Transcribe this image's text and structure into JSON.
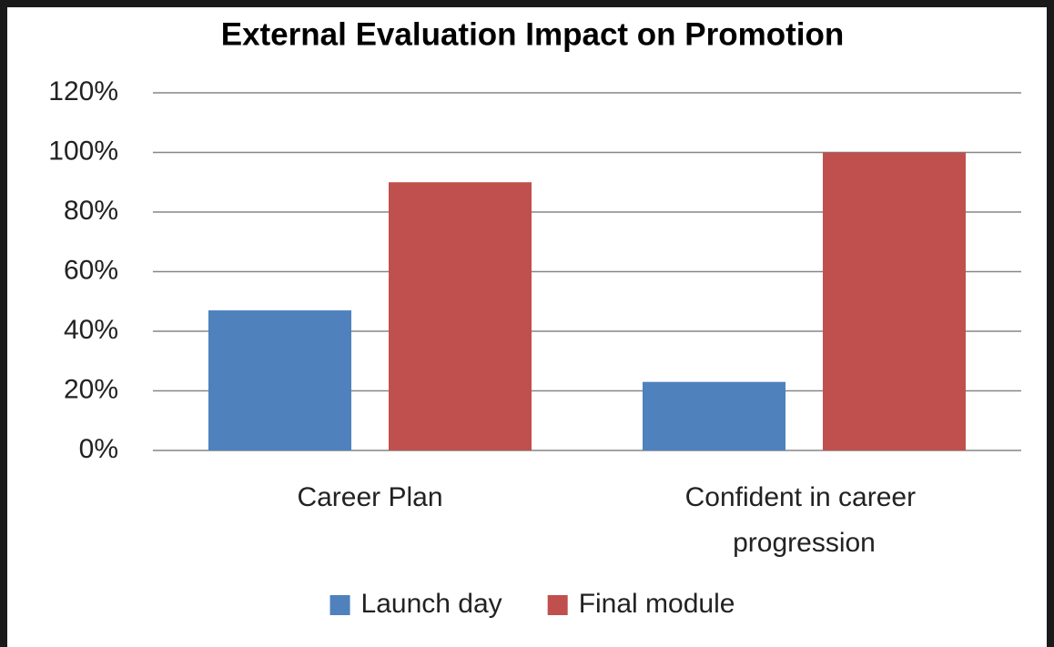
{
  "chart_data": {
    "type": "bar",
    "title": "External Evaluation Impact on Promotion",
    "categories": [
      "Career Plan",
      "Confident in career progression"
    ],
    "series": [
      {
        "name": "Launch day",
        "color": "#4f81bd",
        "values": [
          47,
          23
        ]
      },
      {
        "name": "Final module",
        "color": "#c0504d",
        "values": [
          90,
          100
        ]
      }
    ],
    "ylim": [
      0,
      120
    ],
    "yticks": [
      {
        "value": 0,
        "label": "0%"
      },
      {
        "value": 20,
        "label": "20%"
      },
      {
        "value": 40,
        "label": "40%"
      },
      {
        "value": 60,
        "label": "60%"
      },
      {
        "value": 80,
        "label": "80%"
      },
      {
        "value": 100,
        "label": "100%"
      },
      {
        "value": 120,
        "label": "120%"
      }
    ],
    "grid": true,
    "legend": "bottom"
  }
}
